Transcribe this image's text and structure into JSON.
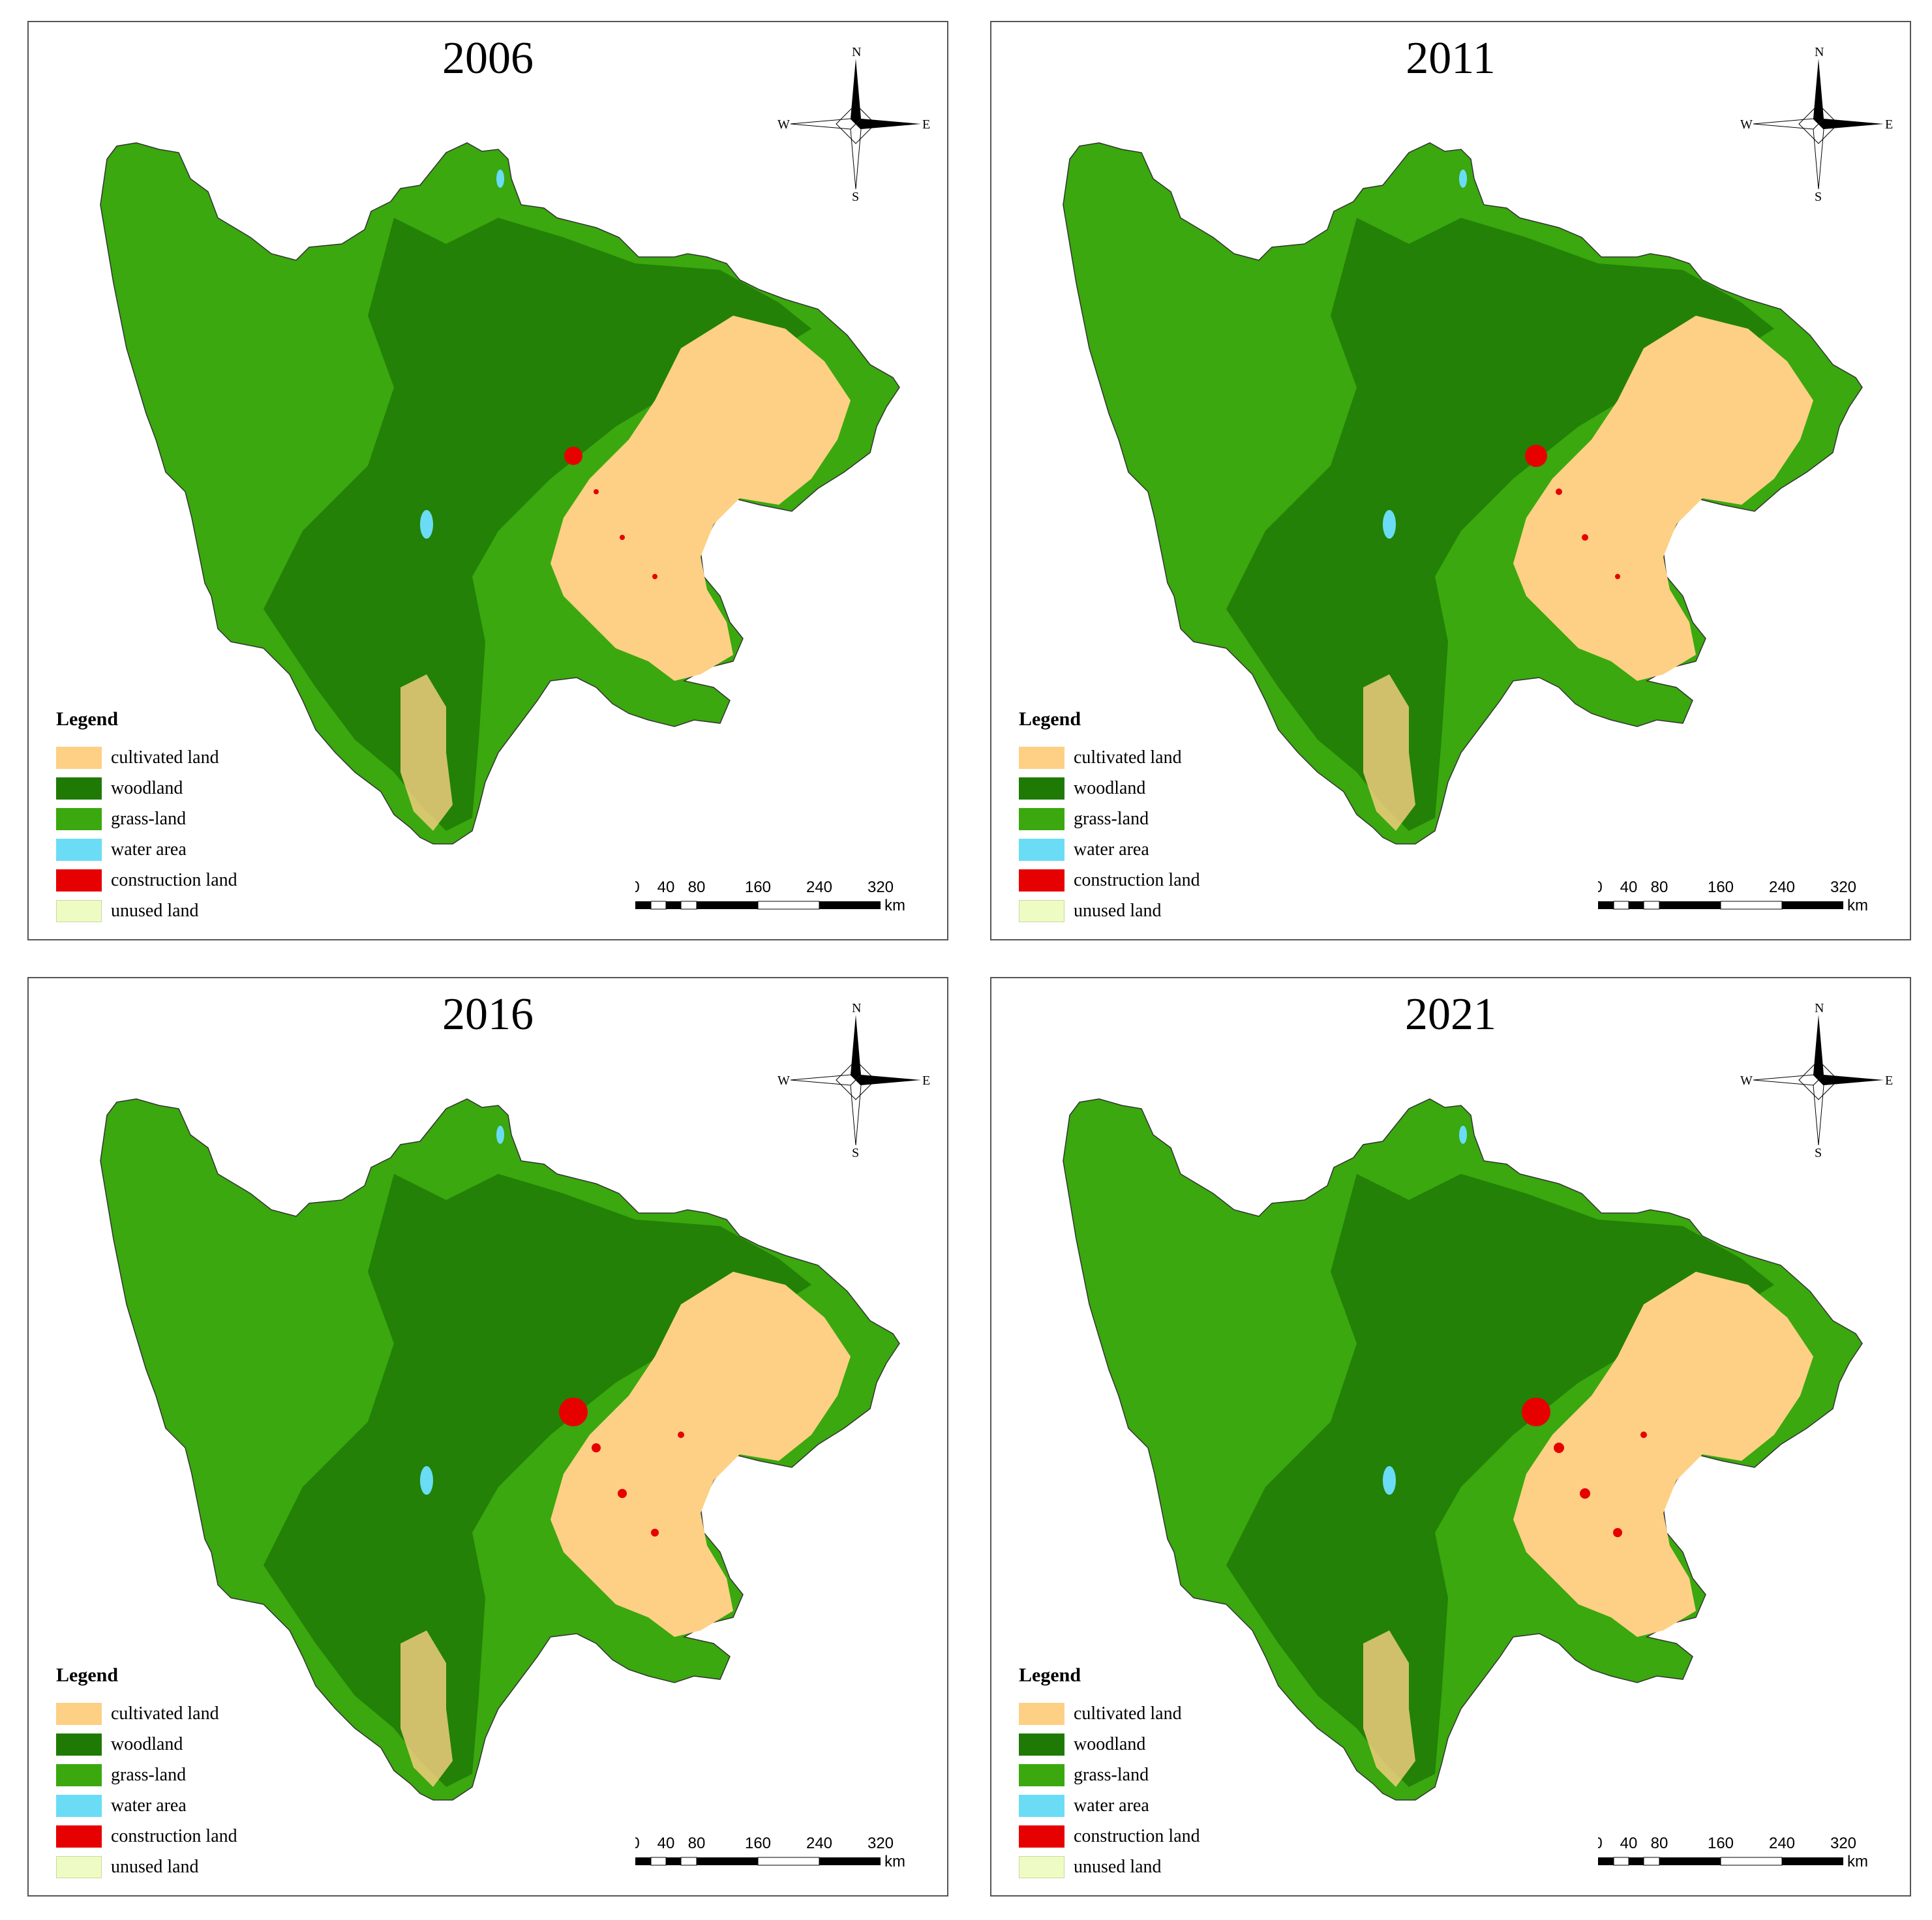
{
  "panels": [
    {
      "year": "2006"
    },
    {
      "year": "2011"
    },
    {
      "year": "2016"
    },
    {
      "year": "2021"
    }
  ],
  "legend": {
    "title": "Legend",
    "items": [
      {
        "label": "cultivated land",
        "color": "#fdd085"
      },
      {
        "label": "woodland",
        "color": "#1f7a05"
      },
      {
        "label": "grass-land",
        "color": "#3aa80e"
      },
      {
        "label": "water area",
        "color": "#6bdcf5"
      },
      {
        "label": "construction land",
        "color": "#e60000"
      },
      {
        "label": "unused land",
        "color": "#eefcc4"
      }
    ]
  },
  "compass": {
    "north": "N",
    "south": "S",
    "east": "E",
    "west": "W"
  },
  "scale_bar": {
    "ticks": [
      "0",
      "40",
      "80",
      "160",
      "240",
      "320"
    ],
    "unit": "km"
  }
}
